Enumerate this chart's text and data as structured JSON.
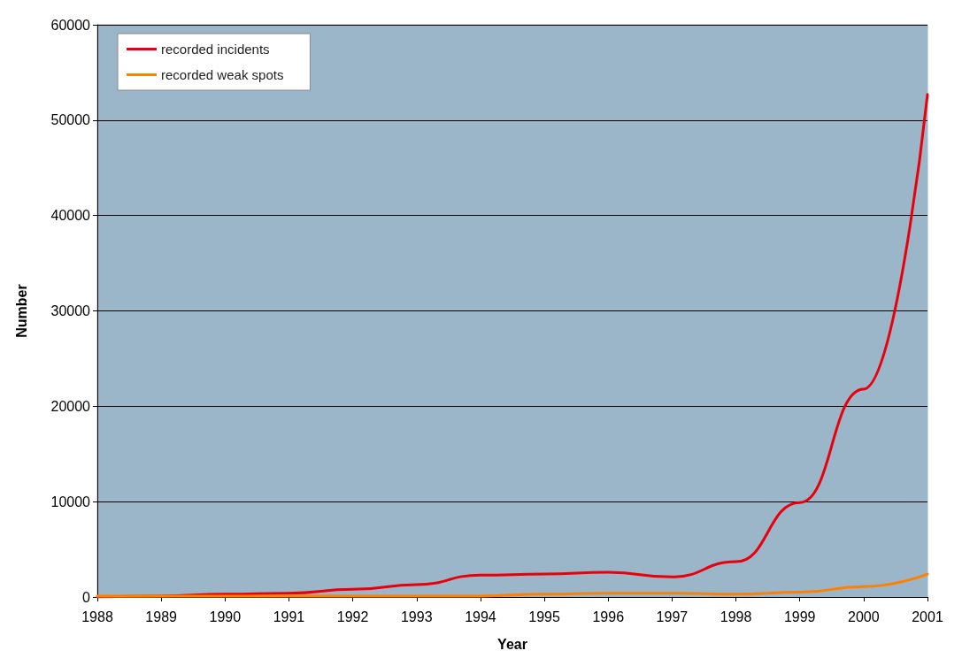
{
  "chart_data": {
    "type": "line",
    "xlabel": "Year",
    "ylabel": "Number",
    "categories": [
      "1988",
      "1989",
      "1990",
      "1991",
      "1992",
      "1993",
      "1994",
      "1995",
      "1996",
      "1997",
      "1998",
      "1999",
      "2000",
      "2001"
    ],
    "series": [
      {
        "name": "recorded incidents",
        "color": "#e8000b",
        "values": [
          0,
          100,
          300,
          400,
          800,
          1300,
          2300,
          2400,
          2600,
          2100,
          3700,
          9900,
          21800,
          52700
        ]
      },
      {
        "name": "recorded weak spots",
        "color": "#ff8000",
        "values": [
          100,
          100,
          100,
          100,
          100,
          100,
          100,
          300,
          400,
          400,
          300,
          500,
          1100,
          2400
        ]
      }
    ],
    "ylim": [
      0,
      60000
    ],
    "yticks": [
      0,
      10000,
      20000,
      30000,
      40000,
      50000,
      60000
    ],
    "grid": "y",
    "legend": "top left",
    "marker": "none",
    "line_style": "solid"
  }
}
